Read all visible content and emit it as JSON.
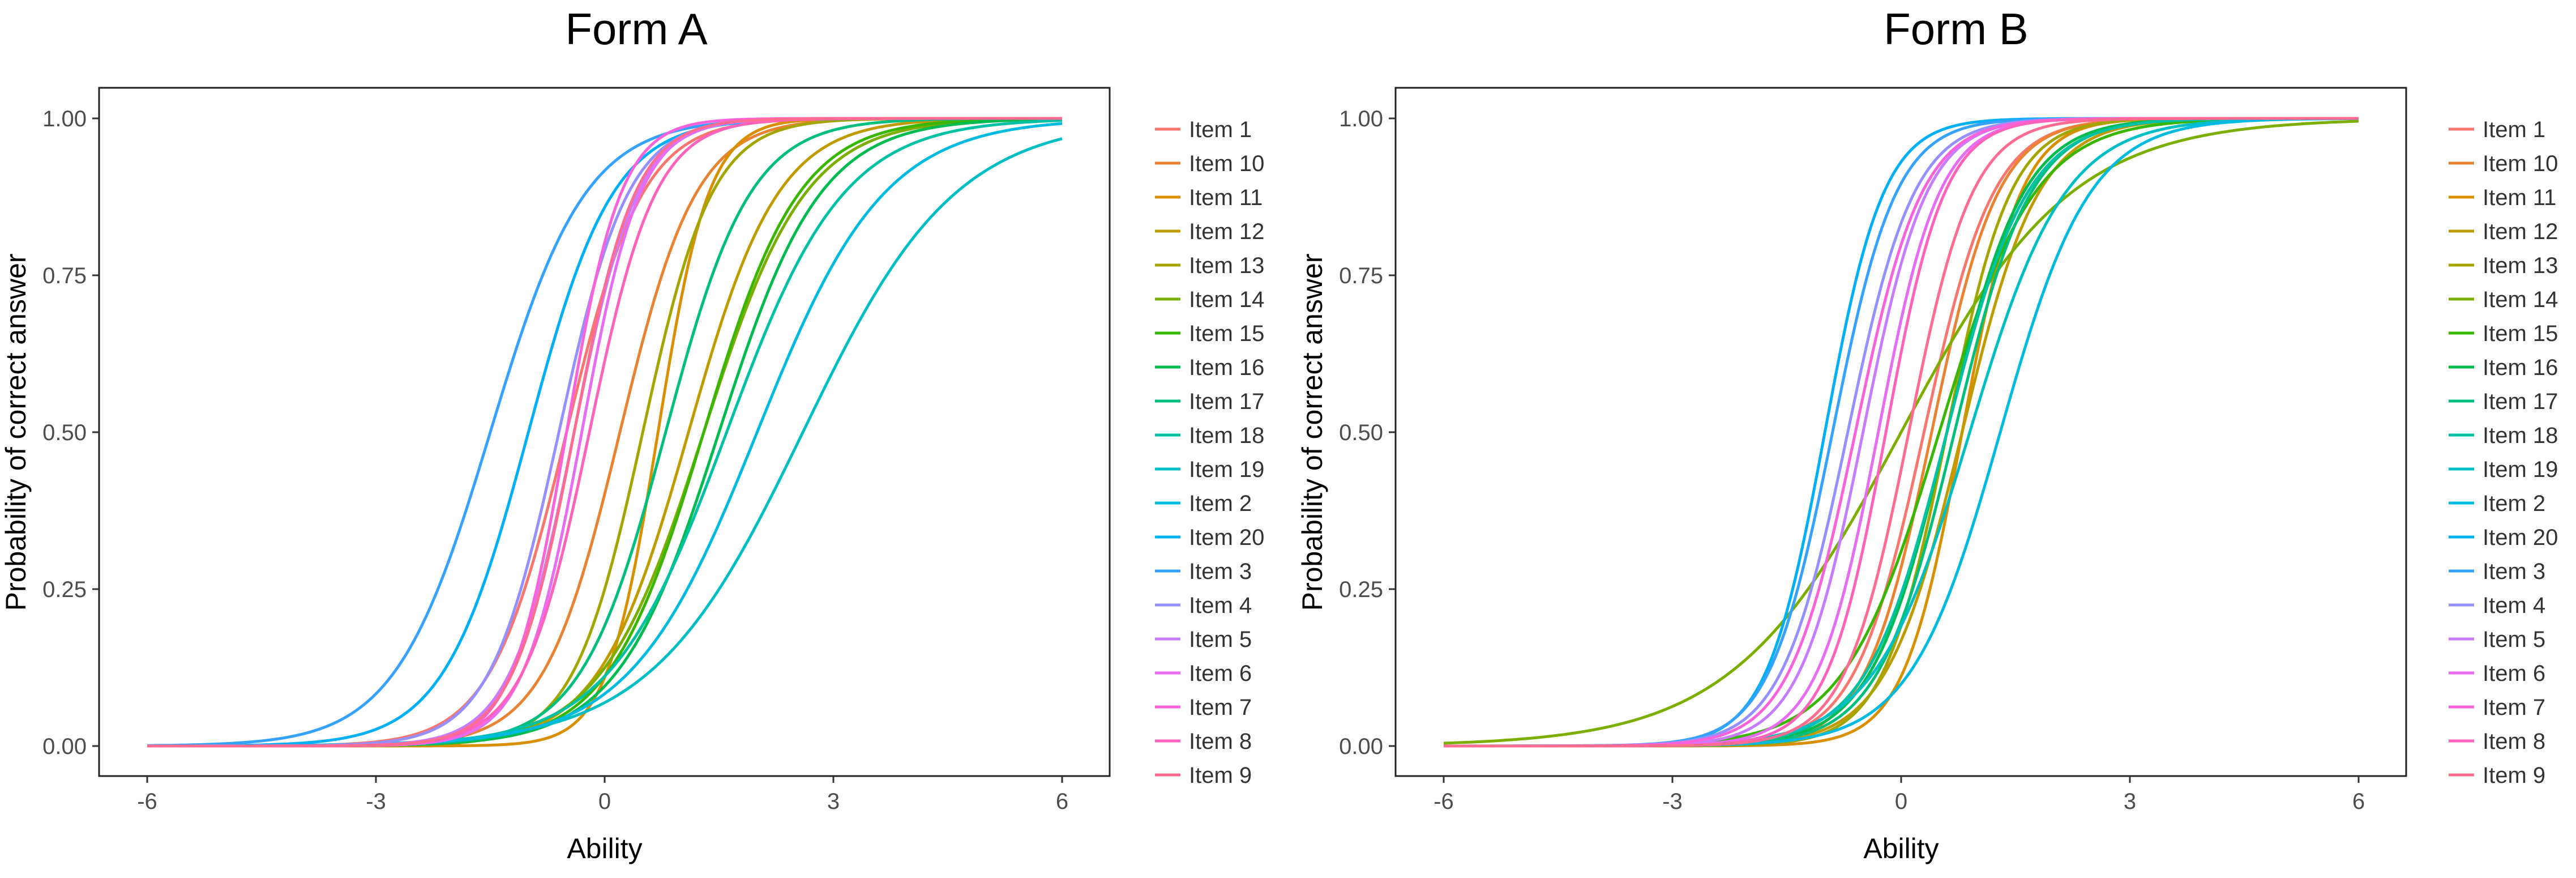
{
  "chart_data": [
    {
      "type": "line",
      "title": "Form A",
      "xlabel": "Ability",
      "ylabel": "Probability of correct answer",
      "xlim": [
        -6,
        6
      ],
      "ylim": [
        0,
        1
      ],
      "xticks": [
        -6,
        -3,
        0,
        3,
        6
      ],
      "xtick_labels": [
        "-6",
        "-3",
        "0",
        "3",
        "6"
      ],
      "yticks": [
        0,
        0.25,
        0.5,
        0.75,
        1
      ],
      "ytick_labels": [
        "0.00",
        "0.25",
        "0.50",
        "0.75",
        "1.00"
      ],
      "grid": false,
      "legend_position": "right",
      "series": [
        {
          "name": "Item 1",
          "color": "#F8766D",
          "b": -0.5,
          "a": 2.0
        },
        {
          "name": "Item 10",
          "color": "#EA8331",
          "b": 0.2,
          "a": 2.0
        },
        {
          "name": "Item 11",
          "color": "#D89000",
          "b": 0.7,
          "a": 3.0
        },
        {
          "name": "Item 12",
          "color": "#C09B00",
          "b": 1.1,
          "a": 1.7
        },
        {
          "name": "Item 13",
          "color": "#A3A500",
          "b": 0.5,
          "a": 2.2
        },
        {
          "name": "Item 14",
          "color": "#7CAE00",
          "b": 1.3,
          "a": 1.5
        },
        {
          "name": "Item 15",
          "color": "#39B600",
          "b": 1.3,
          "a": 1.6
        },
        {
          "name": "Item 16",
          "color": "#00BB4E",
          "b": 1.5,
          "a": 1.5
        },
        {
          "name": "Item 17",
          "color": "#00BF7D",
          "b": 0.8,
          "a": 1.8
        },
        {
          "name": "Item 18",
          "color": "#00C1A3",
          "b": 1.6,
          "a": 1.3
        },
        {
          "name": "Item 19",
          "color": "#00BFC4",
          "b": 2.6,
          "a": 1.0
        },
        {
          "name": "Item 2",
          "color": "#00BAE0",
          "b": 2.0,
          "a": 1.2
        },
        {
          "name": "Item 20",
          "color": "#00B0F6",
          "b": -1.0,
          "a": 1.8
        },
        {
          "name": "Item 3",
          "color": "#35A2FF",
          "b": -1.5,
          "a": 1.6
        },
        {
          "name": "Item 4",
          "color": "#9590FF",
          "b": -0.6,
          "a": 2.2
        },
        {
          "name": "Item 5",
          "color": "#C77CFF",
          "b": -0.4,
          "a": 2.4
        },
        {
          "name": "Item 6",
          "color": "#E76BF3",
          "b": -0.3,
          "a": 2.6
        },
        {
          "name": "Item 7",
          "color": "#FA62DB",
          "b": -0.5,
          "a": 2.8
        },
        {
          "name": "Item 8",
          "color": "#FF62BC",
          "b": -0.2,
          "a": 2.3
        },
        {
          "name": "Item 9",
          "color": "#FF6C91",
          "b": -0.4,
          "a": 2.5
        }
      ]
    },
    {
      "type": "line",
      "title": "Form B",
      "xlabel": "Ability",
      "ylabel": "Probability of correct answer",
      "xlim": [
        -6,
        6
      ],
      "ylim": [
        0,
        1
      ],
      "xticks": [
        -6,
        -3,
        0,
        3,
        6
      ],
      "xtick_labels": [
        "-6",
        "-3",
        "0",
        "3",
        "6"
      ],
      "yticks": [
        0,
        0.25,
        0.5,
        0.75,
        1
      ],
      "ytick_labels": [
        "0.00",
        "0.25",
        "0.50",
        "0.75",
        "1.00"
      ],
      "grid": false,
      "legend_position": "right",
      "series": [
        {
          "name": "Item 1",
          "color": "#F8766D",
          "b": 0.3,
          "a": 2.2
        },
        {
          "name": "Item 10",
          "color": "#EA8331",
          "b": 0.4,
          "a": 2.3
        },
        {
          "name": "Item 11",
          "color": "#D89000",
          "b": 0.8,
          "a": 2.6
        },
        {
          "name": "Item 12",
          "color": "#C09B00",
          "b": 0.8,
          "a": 2.0
        },
        {
          "name": "Item 13",
          "color": "#A3A500",
          "b": 0.6,
          "a": 2.4
        },
        {
          "name": "Item 14",
          "color": "#7CAE00",
          "b": 0.0,
          "a": 0.9
        },
        {
          "name": "Item 15",
          "color": "#39B600",
          "b": 0.5,
          "a": 1.6
        },
        {
          "name": "Item 16",
          "color": "#00BB4E",
          "b": 0.6,
          "a": 2.0
        },
        {
          "name": "Item 17",
          "color": "#00BF7D",
          "b": 0.7,
          "a": 2.0
        },
        {
          "name": "Item 18",
          "color": "#00C1A3",
          "b": 0.6,
          "a": 1.9
        },
        {
          "name": "Item 19",
          "color": "#00BFC4",
          "b": 0.9,
          "a": 1.6
        },
        {
          "name": "Item 2",
          "color": "#00BAE0",
          "b": 1.3,
          "a": 1.7
        },
        {
          "name": "Item 20",
          "color": "#00B0F6",
          "b": -1.0,
          "a": 2.6
        },
        {
          "name": "Item 3",
          "color": "#35A2FF",
          "b": -0.9,
          "a": 2.4
        },
        {
          "name": "Item 4",
          "color": "#9590FF",
          "b": -0.7,
          "a": 2.3
        },
        {
          "name": "Item 5",
          "color": "#C77CFF",
          "b": -0.5,
          "a": 2.4
        },
        {
          "name": "Item 6",
          "color": "#E76BF3",
          "b": -0.3,
          "a": 2.5
        },
        {
          "name": "Item 7",
          "color": "#FA62DB",
          "b": -0.6,
          "a": 2.3
        },
        {
          "name": "Item 8",
          "color": "#FF62BC",
          "b": -0.2,
          "a": 2.6
        },
        {
          "name": "Item 9",
          "color": "#FF6C91",
          "b": 0.1,
          "a": 2.4
        }
      ]
    }
  ]
}
